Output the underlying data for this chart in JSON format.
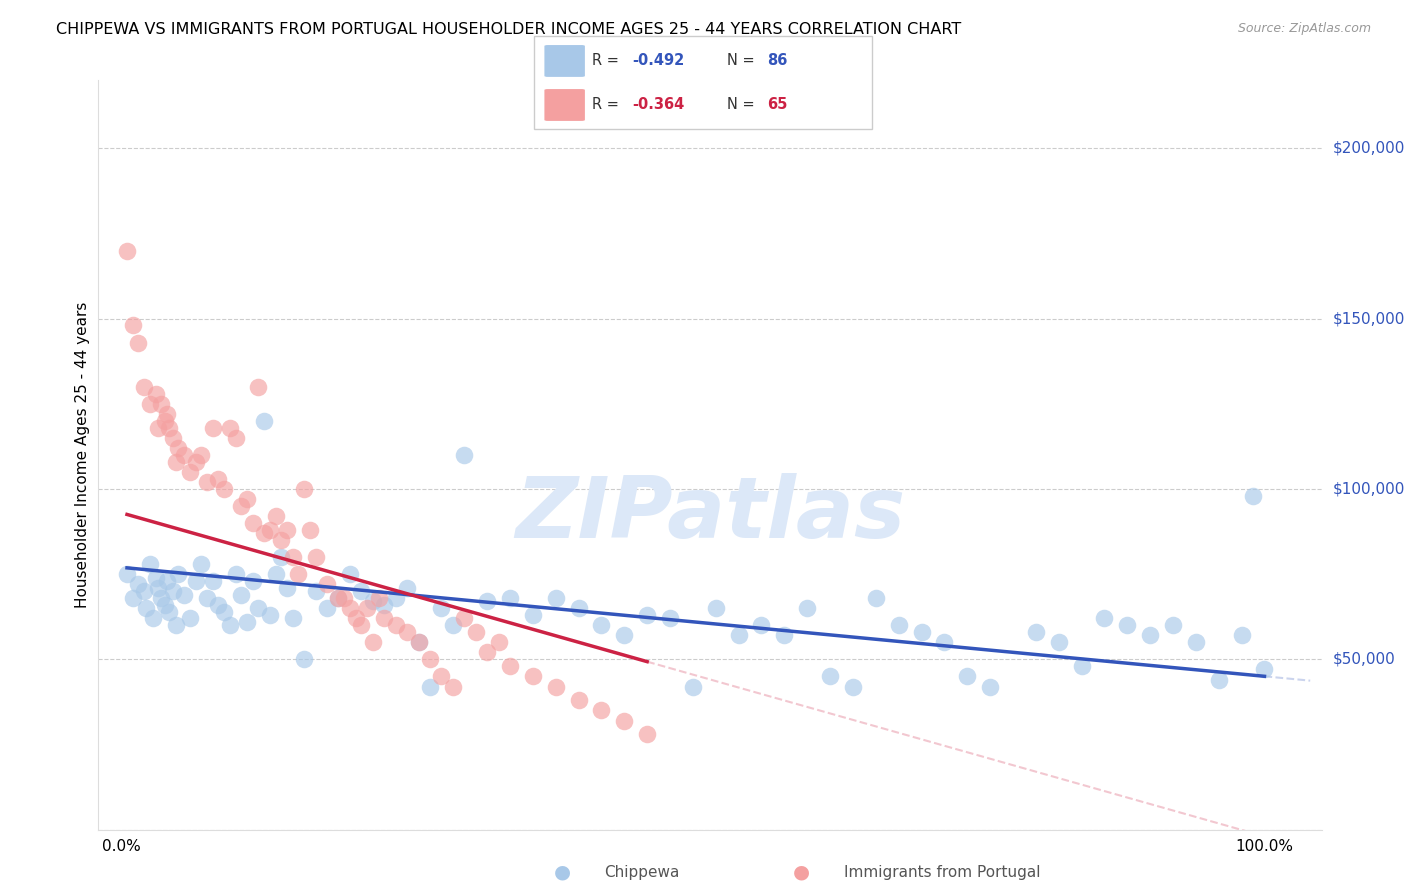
{
  "title": "CHIPPEWA VS IMMIGRANTS FROM PORTUGAL HOUSEHOLDER INCOME AGES 25 - 44 YEARS CORRELATION CHART",
  "source": "Source: ZipAtlas.com",
  "ylabel": "Householder Income Ages 25 - 44 years",
  "legend_1_label": "Chippewa",
  "legend_2_label": "Immigrants from Portugal",
  "legend_1_R": "-0.492",
  "legend_1_N": "86",
  "legend_2_R": "-0.364",
  "legend_2_N": "65",
  "color_blue": "#a8c8e8",
  "color_pink": "#f4a0a0",
  "color_blue_line": "#3355bb",
  "color_pink_line": "#cc2244",
  "color_watermark": "#dce8f8",
  "ylim": [
    0,
    220000
  ],
  "xlim": [
    -0.02,
    1.05
  ],
  "yticks": [
    0,
    50000,
    100000,
    150000,
    200000
  ],
  "blue_points_x": [
    0.005,
    0.01,
    0.015,
    0.02,
    0.022,
    0.025,
    0.028,
    0.03,
    0.032,
    0.035,
    0.038,
    0.04,
    0.042,
    0.045,
    0.048,
    0.05,
    0.055,
    0.06,
    0.065,
    0.07,
    0.075,
    0.08,
    0.085,
    0.09,
    0.095,
    0.1,
    0.105,
    0.11,
    0.115,
    0.12,
    0.125,
    0.13,
    0.135,
    0.14,
    0.145,
    0.15,
    0.16,
    0.17,
    0.18,
    0.19,
    0.2,
    0.21,
    0.22,
    0.23,
    0.24,
    0.25,
    0.26,
    0.27,
    0.28,
    0.29,
    0.3,
    0.32,
    0.34,
    0.36,
    0.38,
    0.4,
    0.42,
    0.44,
    0.46,
    0.48,
    0.5,
    0.52,
    0.54,
    0.56,
    0.58,
    0.6,
    0.62,
    0.64,
    0.66,
    0.68,
    0.7,
    0.72,
    0.74,
    0.76,
    0.8,
    0.82,
    0.84,
    0.86,
    0.9,
    0.92,
    0.94,
    0.96,
    0.98,
    0.99,
    1.0,
    0.88
  ],
  "blue_points_y": [
    75000,
    68000,
    72000,
    70000,
    65000,
    78000,
    62000,
    74000,
    71000,
    68000,
    66000,
    73000,
    64000,
    70000,
    60000,
    75000,
    69000,
    62000,
    73000,
    78000,
    68000,
    73000,
    66000,
    64000,
    60000,
    75000,
    69000,
    61000,
    73000,
    65000,
    120000,
    63000,
    75000,
    80000,
    71000,
    62000,
    50000,
    70000,
    65000,
    68000,
    75000,
    70000,
    67000,
    66000,
    68000,
    71000,
    55000,
    42000,
    65000,
    60000,
    110000,
    67000,
    68000,
    63000,
    68000,
    65000,
    60000,
    57000,
    63000,
    62000,
    42000,
    65000,
    57000,
    60000,
    57000,
    65000,
    45000,
    42000,
    68000,
    60000,
    58000,
    55000,
    45000,
    42000,
    58000,
    55000,
    48000,
    62000,
    57000,
    60000,
    55000,
    44000,
    57000,
    98000,
    47000,
    60000
  ],
  "pink_points_x": [
    0.005,
    0.01,
    0.015,
    0.02,
    0.025,
    0.03,
    0.032,
    0.035,
    0.038,
    0.04,
    0.042,
    0.045,
    0.048,
    0.05,
    0.055,
    0.06,
    0.065,
    0.07,
    0.075,
    0.08,
    0.085,
    0.09,
    0.095,
    0.1,
    0.105,
    0.11,
    0.115,
    0.12,
    0.125,
    0.13,
    0.135,
    0.14,
    0.145,
    0.15,
    0.155,
    0.16,
    0.165,
    0.17,
    0.18,
    0.19,
    0.195,
    0.2,
    0.205,
    0.21,
    0.215,
    0.22,
    0.225,
    0.23,
    0.24,
    0.25,
    0.26,
    0.27,
    0.28,
    0.29,
    0.3,
    0.31,
    0.32,
    0.33,
    0.34,
    0.36,
    0.38,
    0.4,
    0.42,
    0.44,
    0.46
  ],
  "pink_points_y": [
    170000,
    148000,
    143000,
    130000,
    125000,
    128000,
    118000,
    125000,
    120000,
    122000,
    118000,
    115000,
    108000,
    112000,
    110000,
    105000,
    108000,
    110000,
    102000,
    118000,
    103000,
    100000,
    118000,
    115000,
    95000,
    97000,
    90000,
    130000,
    87000,
    88000,
    92000,
    85000,
    88000,
    80000,
    75000,
    100000,
    88000,
    80000,
    72000,
    68000,
    68000,
    65000,
    62000,
    60000,
    65000,
    55000,
    68000,
    62000,
    60000,
    58000,
    55000,
    50000,
    45000,
    42000,
    62000,
    58000,
    52000,
    55000,
    48000,
    45000,
    42000,
    38000,
    35000,
    32000,
    28000
  ]
}
